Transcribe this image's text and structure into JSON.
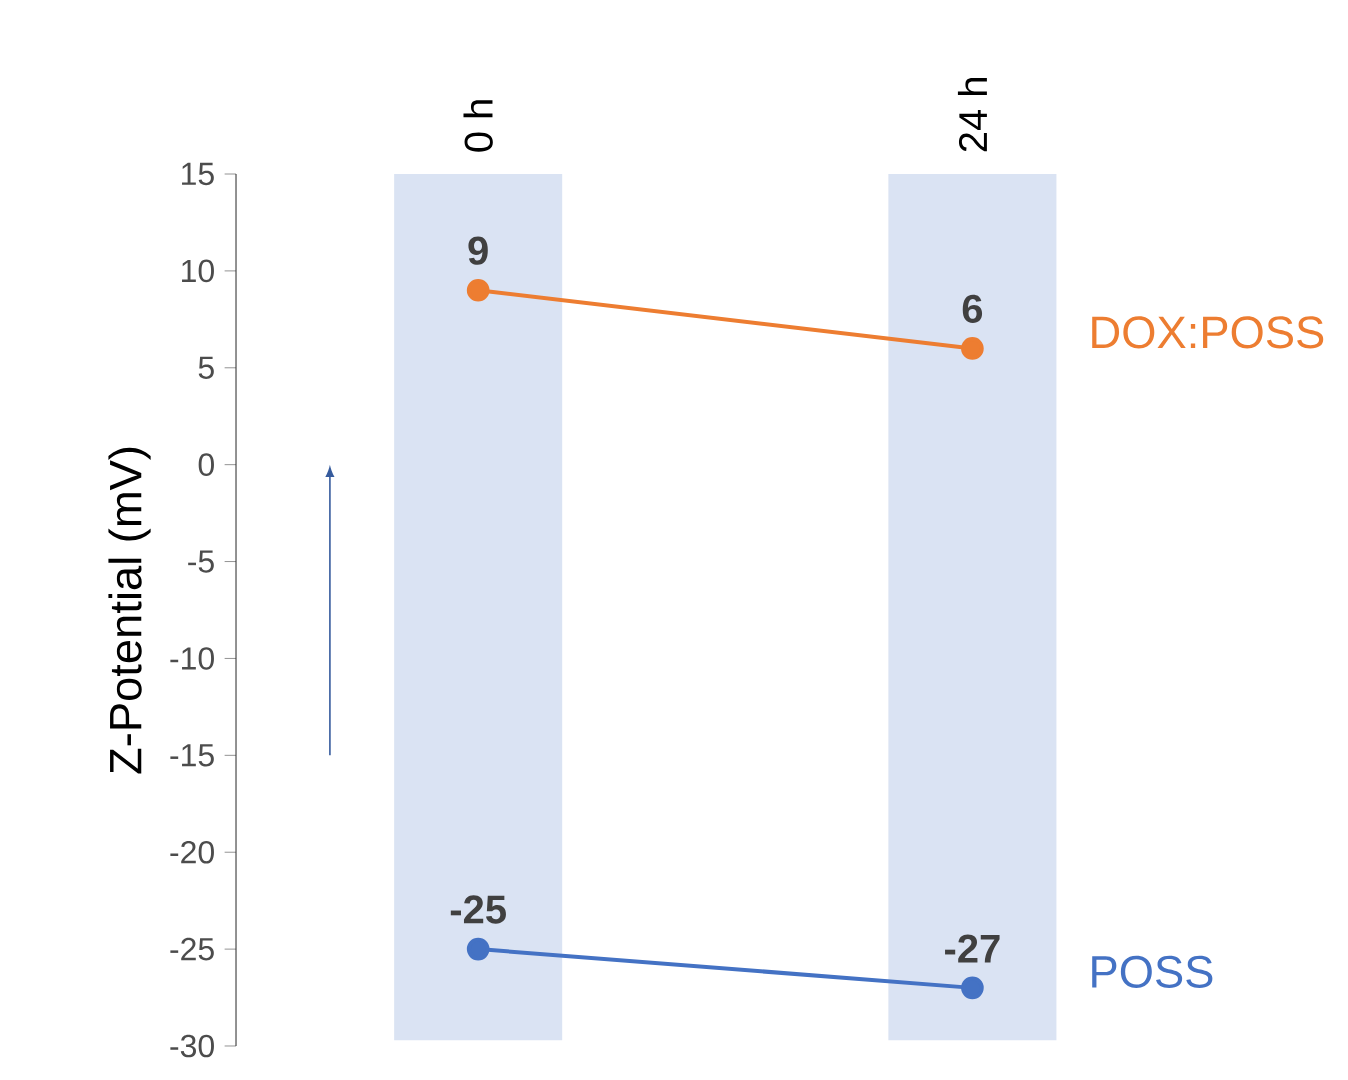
{
  "chart_data": {
    "type": "line",
    "ylabel": "Z-Potential (mV)",
    "categories": [
      "0 h",
      "24 h"
    ],
    "series": [
      {
        "name": "DOX:POSS",
        "color": "#ed7d31",
        "values": [
          9,
          6
        ]
      },
      {
        "name": "POSS",
        "color": "#4472c4",
        "values": [
          -25,
          -27
        ]
      }
    ],
    "ylim": [
      -30,
      15
    ],
    "yticks": [
      -30,
      -25,
      -20,
      -15,
      -10,
      -5,
      0,
      5,
      10,
      15
    ],
    "bands": [
      {
        "axis": "x",
        "from": "0 h",
        "to": "0 h",
        "color": "#dae3f3"
      },
      {
        "axis": "x",
        "from": "24 h",
        "to": "24 h",
        "color": "#dae3f3"
      }
    ],
    "data_labels": true,
    "grid": false,
    "marker": "circle",
    "line_style": "solid"
  }
}
